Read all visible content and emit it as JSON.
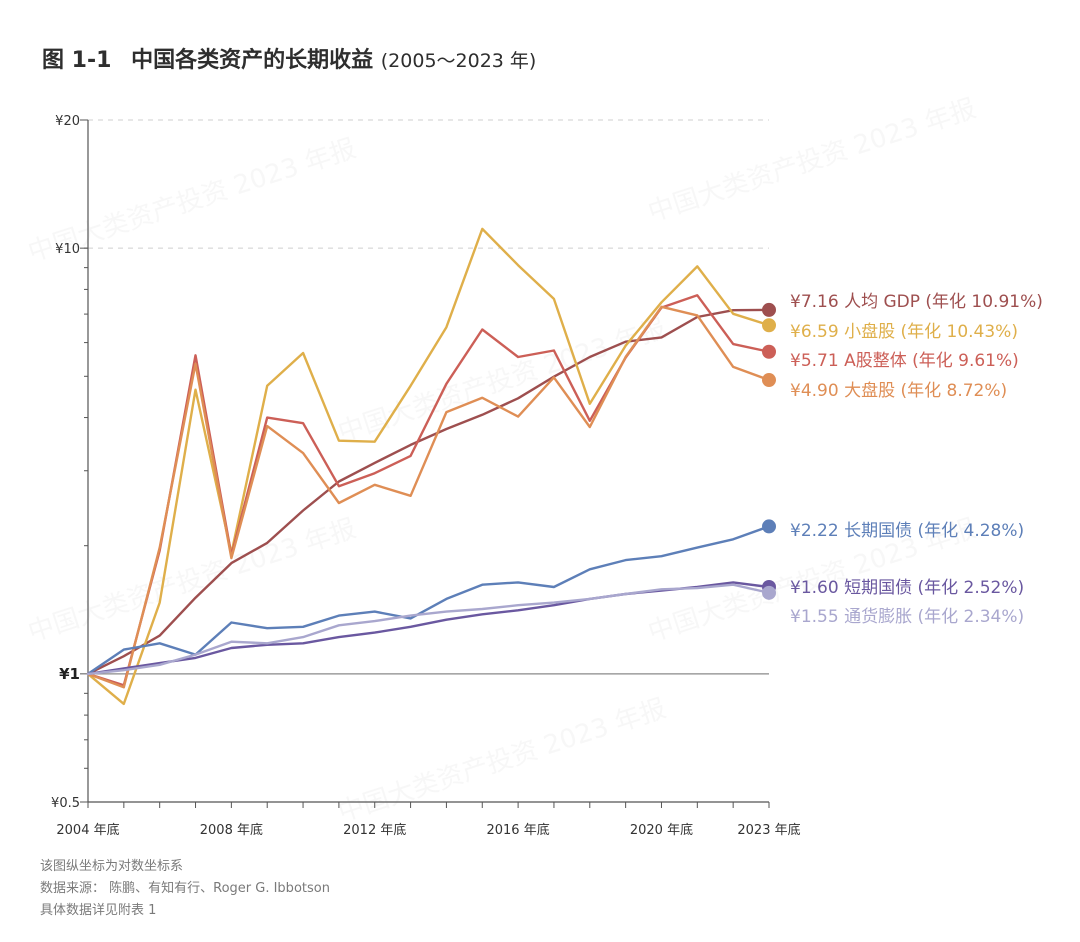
{
  "title": {
    "figure": "图 1-1",
    "main": "中国各类资产的长期收益",
    "sub": "(2005～2023 年)"
  },
  "watermark": "中国大类资产投资 2023 年报",
  "notes": [
    "该图纵坐标为对数坐标系",
    "数据来源： 陈鹏、有知有行、Roger G. Ibbotson",
    "具体数据详见附表 1"
  ],
  "chart_data": {
    "type": "line",
    "yscale": "log",
    "ylim": [
      0.5,
      20
    ],
    "yticks": [
      {
        "value": 20,
        "label": "¥20"
      },
      {
        "value": 10,
        "label": "¥10"
      },
      {
        "value": 1,
        "label": "¥1"
      },
      {
        "value": 0.5,
        "label": "¥0.5"
      }
    ],
    "xlim": [
      2004,
      2023
    ],
    "xticks": [
      {
        "value": 2004,
        "label": "2004 年底"
      },
      {
        "value": 2008,
        "label": "2008 年底"
      },
      {
        "value": 2012,
        "label": "2012 年底"
      },
      {
        "value": 2016,
        "label": "2016 年底"
      },
      {
        "value": 2020,
        "label": "2020 年底"
      },
      {
        "value": 2023,
        "label": "2023 年底"
      }
    ],
    "x": [
      2004,
      2005,
      2006,
      2007,
      2008,
      2009,
      2010,
      2011,
      2012,
      2013,
      2014,
      2015,
      2016,
      2017,
      2018,
      2019,
      2020,
      2021,
      2022,
      2023
    ],
    "series": [
      {
        "name": "人均GDP",
        "label": "¥7.16 人均 GDP (年化 10.91%)",
        "color": "#9e4f4f",
        "values": [
          1,
          1.1,
          1.23,
          1.51,
          1.82,
          2.03,
          2.42,
          2.83,
          3.13,
          3.45,
          3.76,
          4.06,
          4.44,
          4.99,
          5.55,
          6.03,
          6.17,
          6.89,
          7.15,
          7.16
        ]
      },
      {
        "name": "小盘股",
        "label": "¥6.59 小盘股 (年化 10.43%)",
        "color": "#dfaf4a",
        "values": [
          1,
          0.85,
          1.47,
          4.65,
          1.92,
          4.75,
          5.67,
          3.53,
          3.51,
          4.75,
          6.52,
          11.1,
          9.12,
          7.6,
          4.31,
          5.9,
          7.46,
          9.06,
          7.01,
          6.59
        ]
      },
      {
        "name": "A股整体",
        "label": "¥5.71 A股整体 (年化 9.61%)",
        "color": "#cc5f57",
        "values": [
          1,
          0.94,
          1.95,
          5.6,
          1.9,
          4.0,
          3.88,
          2.76,
          2.96,
          3.25,
          4.8,
          6.44,
          5.55,
          5.75,
          3.93,
          5.53,
          7.25,
          7.75,
          5.95,
          5.71
        ]
      },
      {
        "name": "大盘股",
        "label": "¥4.90 大盘股 (年化 8.72%)",
        "color": "#df8e55",
        "values": [
          1,
          0.93,
          1.98,
          5.35,
          1.87,
          3.82,
          3.3,
          2.52,
          2.78,
          2.62,
          4.12,
          4.45,
          4.02,
          4.97,
          3.8,
          5.55,
          7.28,
          6.95,
          5.26,
          4.9
        ]
      },
      {
        "name": "长期国债",
        "label": "¥2.22 长期国债 (年化 4.28%)",
        "color": "#5d7fb8",
        "values": [
          1,
          1.14,
          1.18,
          1.11,
          1.32,
          1.28,
          1.29,
          1.37,
          1.4,
          1.35,
          1.5,
          1.62,
          1.64,
          1.6,
          1.76,
          1.85,
          1.89,
          1.98,
          2.07,
          2.22
        ]
      },
      {
        "name": "短期国债",
        "label": "¥1.60 短期国债 (年化 2.52%)",
        "color": "#6a58a0",
        "values": [
          1,
          1.03,
          1.06,
          1.09,
          1.15,
          1.17,
          1.18,
          1.22,
          1.25,
          1.29,
          1.34,
          1.38,
          1.41,
          1.45,
          1.5,
          1.54,
          1.57,
          1.6,
          1.64,
          1.6
        ]
      },
      {
        "name": "通货膨胀",
        "label": "¥1.55 通货膨胀 (年化 2.34%)",
        "color": "#a9a7ce",
        "values": [
          1,
          1.02,
          1.05,
          1.11,
          1.19,
          1.18,
          1.22,
          1.3,
          1.33,
          1.37,
          1.4,
          1.42,
          1.45,
          1.47,
          1.5,
          1.54,
          1.58,
          1.59,
          1.62,
          1.55
        ]
      }
    ]
  }
}
